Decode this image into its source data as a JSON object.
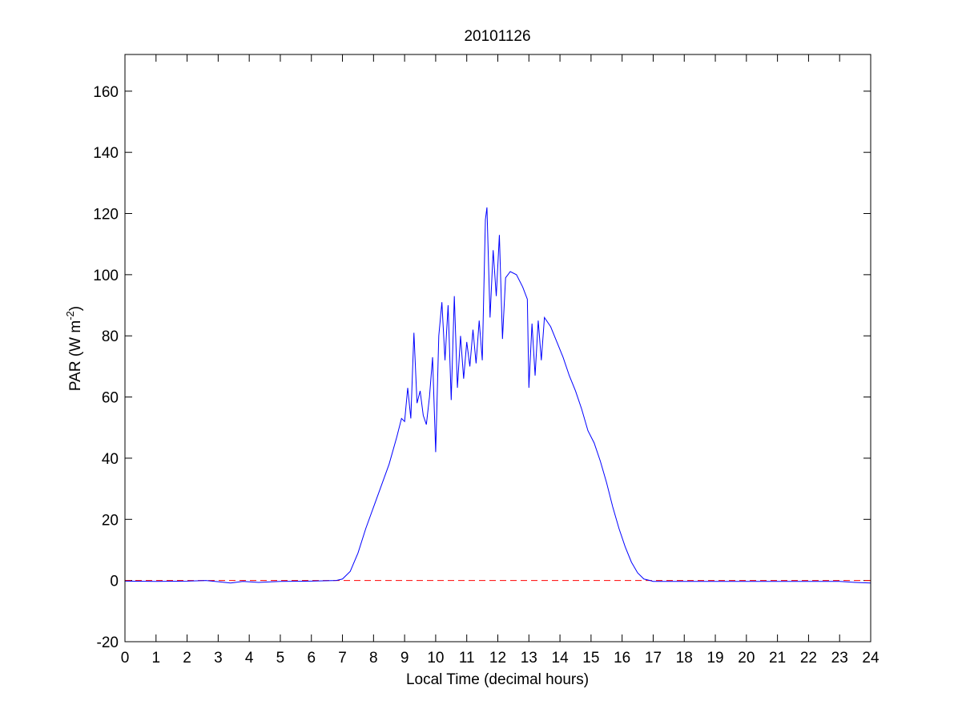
{
  "chart_data": {
    "type": "line",
    "title": "20101126",
    "xlabel": "Local Time (decimal hours)",
    "ylabel": [
      "PAR (W m",
      "-2",
      ")"
    ],
    "xlim": [
      0,
      24
    ],
    "ylim": [
      -20,
      172
    ],
    "xticks": [
      0,
      1,
      2,
      3,
      4,
      5,
      6,
      7,
      8,
      9,
      10,
      11,
      12,
      13,
      14,
      15,
      16,
      17,
      18,
      19,
      20,
      21,
      22,
      23,
      24
    ],
    "yticks": [
      -20,
      0,
      20,
      40,
      60,
      80,
      100,
      120,
      140,
      160
    ],
    "hline": {
      "value": 0,
      "color": "#ff0000",
      "dash": true
    },
    "series": [
      {
        "color": "#0000ff",
        "x": [
          0,
          1,
          2,
          2.6,
          3,
          3.4,
          3.8,
          4.3,
          5,
          6,
          6.8,
          7,
          7.25,
          7.5,
          7.75,
          8,
          8.25,
          8.5,
          8.75,
          8.9,
          9,
          9.1,
          9.2,
          9.3,
          9.4,
          9.5,
          9.6,
          9.7,
          9.8,
          9.9,
          10,
          10.1,
          10.2,
          10.3,
          10.4,
          10.5,
          10.6,
          10.7,
          10.8,
          10.9,
          11,
          11.1,
          11.2,
          11.3,
          11.4,
          11.5,
          11.6,
          11.65,
          11.75,
          11.85,
          11.95,
          12.05,
          12.15,
          12.25,
          12.4,
          12.6,
          12.8,
          12.95,
          13,
          13.1,
          13.2,
          13.3,
          13.4,
          13.5,
          13.7,
          13.9,
          14.1,
          14.3,
          14.5,
          14.7,
          14.9,
          15.1,
          15.3,
          15.5,
          15.7,
          15.9,
          16.1,
          16.3,
          16.5,
          16.7,
          16.9,
          17,
          18,
          19,
          20,
          21,
          22,
          23,
          23.5,
          24
        ],
        "values": [
          -0.2,
          -0.3,
          -0.2,
          0,
          -0.4,
          -0.8,
          -0.3,
          -0.6,
          -0.3,
          -0.2,
          0,
          0.5,
          3,
          9,
          17,
          24,
          31,
          38,
          47,
          53,
          52,
          63,
          53,
          81,
          58,
          62,
          54,
          51,
          60,
          73,
          42,
          80,
          91,
          72,
          90,
          59,
          93,
          63,
          80,
          66,
          78,
          70,
          82,
          71,
          85,
          72,
          118,
          122,
          86,
          108,
          93,
          113,
          79,
          99,
          101,
          100,
          96,
          92,
          63,
          84,
          67,
          85,
          72,
          86,
          83,
          78,
          73,
          67,
          62,
          56,
          49,
          45,
          39,
          32,
          24,
          17,
          11,
          6,
          2.5,
          0.5,
          0,
          -0.3,
          -0.3,
          -0.3,
          -0.3,
          -0.3,
          -0.3,
          -0.3,
          -0.6,
          -0.8
        ]
      }
    ]
  }
}
